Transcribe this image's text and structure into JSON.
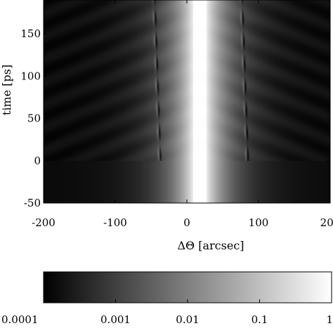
{
  "chart_data": [
    {
      "type": "heatmap",
      "title": "",
      "xlabel": "ΔΘ [arcsec]",
      "ylabel": "time [ps]",
      "xlim": [
        -200,
        200
      ],
      "ylim": [
        -50,
        190
      ],
      "x_ticks": [
        -200,
        -100,
        0,
        100,
        200
      ],
      "x_tick_labels": [
        "-200",
        "-100",
        "0",
        "100",
        "200"
      ],
      "y_ticks": [
        -50,
        0,
        50,
        100,
        150
      ],
      "y_tick_labels": [
        "-50",
        "0",
        "50",
        "100",
        "150"
      ],
      "colormap": "gray",
      "scale": "log",
      "colorbar_range": [
        0.0001,
        1
      ],
      "main_peak_x": 18,
      "main_peak_half_width": 9,
      "side_features": [
        {
          "x_at_t0": -38,
          "x_at_tmax": -46
        },
        {
          "x_at_t0": 84,
          "x_at_tmax": 76
        }
      ],
      "onset_time": 0,
      "oscillation_period": 27
    },
    {
      "type": "colorbar",
      "orientation": "horizontal",
      "scale": "log",
      "range": [
        0.0001,
        1
      ],
      "ticks": [
        0.0001,
        0.001,
        0.01,
        0.1,
        1
      ],
      "tick_labels": [
        "0.0001",
        "0.001",
        "0.01",
        "0.1",
        "1"
      ]
    }
  ]
}
